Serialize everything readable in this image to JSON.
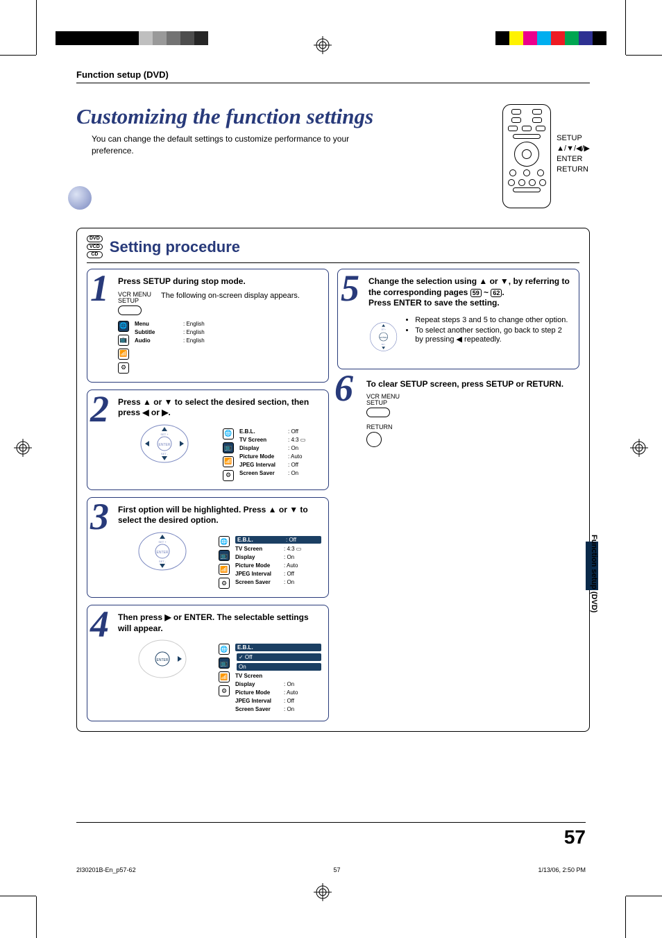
{
  "printBand": {
    "leftGreys": [
      "#bfbfbf",
      "#999999",
      "#737373",
      "#4d4d4d",
      "#262626"
    ],
    "rightColors": [
      "#000000",
      "#fff200",
      "#ec008c",
      "#00aeef",
      "#ed1c24",
      "#00a651",
      "#2e3192",
      "#000000"
    ]
  },
  "header": {
    "section": "Function setup (DVD)"
  },
  "title": {
    "main": "Customizing the function settings",
    "sub": "You can change the default settings to customize performance to your preference."
  },
  "remote": {
    "labels": [
      "SETUP",
      "▲/▼/◀/▶",
      "ENTER",
      "RETURN"
    ]
  },
  "procedure": {
    "badges": [
      "DVD",
      "VCD",
      "CD"
    ],
    "title": "Setting procedure",
    "steps": [
      {
        "num": "1",
        "head": "Press SETUP during stop mode.",
        "vcrLabel": "VCR MENU\nSETUP",
        "bodyPrefix": "The following on-screen display appears.",
        "osd": {
          "iconLabels": [
            "🌐",
            "📺",
            "📶",
            "⚙"
          ],
          "activeIcon": 0,
          "rows": [
            {
              "k": "Menu",
              "v": ": English"
            },
            {
              "k": "Subtitle",
              "v": ": English"
            },
            {
              "k": "Audio",
              "v": ": English"
            }
          ]
        }
      },
      {
        "num": "2",
        "head": "Press ▲ or ▼ to select the desired section, then press ◀ or ▶.",
        "osd": {
          "iconLabels": [
            "🌐",
            "📺",
            "📶",
            "⚙"
          ],
          "activeIcon": 1,
          "rows": [
            {
              "k": "E.B.L.",
              "v": ": Off"
            },
            {
              "k": "TV Screen",
              "v": ": 4:3 ▭"
            },
            {
              "k": "Display",
              "v": ": On"
            },
            {
              "k": "Picture Mode",
              "v": ": Auto"
            },
            {
              "k": "JPEG Interval",
              "v": ": Off"
            },
            {
              "k": "Screen Saver",
              "v": ": On"
            }
          ]
        }
      },
      {
        "num": "3",
        "head": "First option will be highlighted. Press ▲ or ▼ to select the desired option.",
        "osd": {
          "iconLabels": [
            "🌐",
            "📺",
            "📶",
            "⚙"
          ],
          "activeIcon": 1,
          "highlightRow": 0,
          "rows": [
            {
              "k": "E.B.L.",
              "v": ": Off"
            },
            {
              "k": "TV Screen",
              "v": ": 4:3 ▭"
            },
            {
              "k": "Display",
              "v": ": On"
            },
            {
              "k": "Picture Mode",
              "v": ": Auto"
            },
            {
              "k": "JPEG Interval",
              "v": ": Off"
            },
            {
              "k": "Screen Saver",
              "v": ": On"
            }
          ]
        }
      },
      {
        "num": "4",
        "head": "Then press ▶ or ENTER. The selectable settings will appear.",
        "osd": {
          "iconLabels": [
            "🌐",
            "📺",
            "📶",
            "⚙"
          ],
          "activeIcon": 1,
          "highlightRow": 0,
          "popup": [
            "✓ Off",
            "On"
          ],
          "rows": [
            {
              "k": "E.B.L.",
              "v": ""
            },
            {
              "k": "TV Screen",
              "v": ""
            },
            {
              "k": "Display",
              "v": ": On"
            },
            {
              "k": "Picture Mode",
              "v": ": Auto"
            },
            {
              "k": "JPEG Interval",
              "v": ": Off"
            },
            {
              "k": "Screen Saver",
              "v": ": On"
            }
          ]
        }
      },
      {
        "num": "5",
        "head_a": "Change the selection using ▲ or ▼, by referring to the corresponding pages ",
        "head_b": " ~ ",
        "head_c": ".",
        "pg1": "59",
        "pg2": "62",
        "head2": "Press ENTER to save the setting.",
        "bullets": [
          "Repeat steps 3 and 5 to change other option.",
          "To select another section, go back to step 2 by pressing ◀ repeatedly."
        ]
      },
      {
        "num": "6",
        "head": "To clear SETUP screen, press SETUP or RETURN.",
        "vcrLabel": "VCR MENU\nSETUP",
        "returnLabel": "RETURN"
      }
    ]
  },
  "sideTab": "Function setup (DVD)",
  "pageNum": "57",
  "footer": {
    "file": "2I30201B-En_p57-62",
    "page": "57",
    "timestamp": "1/13/06, 2:50 PM"
  }
}
